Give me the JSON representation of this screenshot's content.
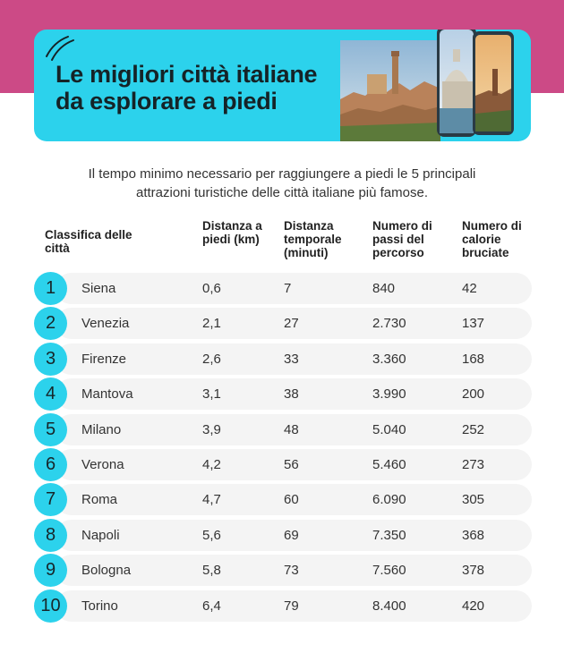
{
  "header": {
    "title_line1": "Le migliori città italiane",
    "title_line2": "da esplorare a piedi"
  },
  "subtitle_line1": "Il tempo minimo necessario per raggiungere a piedi le 5 principali",
  "subtitle_line2": "attrazioni turistiche delle città italiane più famose.",
  "table": {
    "columns": {
      "rank": "Classifica delle città",
      "distance": "Distanza a piedi (km)",
      "time": "Distanza temporale (minuti)",
      "steps": "Numero di passi del percorso",
      "calories": "Numero di calorie bruciate"
    },
    "rows": [
      {
        "rank": "1",
        "city": "Siena",
        "distance": "0,6",
        "time": "7",
        "steps": "840",
        "calories": "42"
      },
      {
        "rank": "2",
        "city": "Venezia",
        "distance": "2,1",
        "time": "27",
        "steps": "2.730",
        "calories": "137"
      },
      {
        "rank": "3",
        "city": "Firenze",
        "distance": "2,6",
        "time": "33",
        "steps": "3.360",
        "calories": "168"
      },
      {
        "rank": "4",
        "city": "Mantova",
        "distance": "3,1",
        "time": "38",
        "steps": "3.990",
        "calories": "200"
      },
      {
        "rank": "5",
        "city": "Milano",
        "distance": "3,9",
        "time": "48",
        "steps": "5.040",
        "calories": "252"
      },
      {
        "rank": "6",
        "city": "Verona",
        "distance": "4,2",
        "time": "56",
        "steps": "5.460",
        "calories": "273"
      },
      {
        "rank": "7",
        "city": "Roma",
        "distance": "4,7",
        "time": "60",
        "steps": "6.090",
        "calories": "305"
      },
      {
        "rank": "8",
        "city": "Napoli",
        "distance": "5,6",
        "time": "69",
        "steps": "7.350",
        "calories": "368"
      },
      {
        "rank": "9",
        "city": "Bologna",
        "distance": "5,8",
        "time": "73",
        "steps": "7.560",
        "calories": "378"
      },
      {
        "rank": "10",
        "city": "Torino",
        "distance": "6,4",
        "time": "79",
        "steps": "8.400",
        "calories": "420"
      }
    ]
  },
  "colors": {
    "band": "#cc4a86",
    "accent": "#2cd2ec",
    "row_bg": "#f4f4f4"
  }
}
